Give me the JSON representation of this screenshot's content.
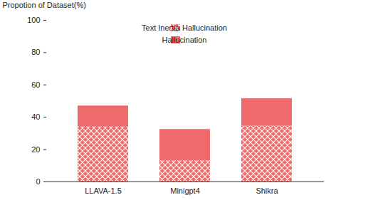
{
  "chart_data": {
    "type": "bar",
    "y_label": "Propotion of Dataset(%)",
    "categories": [
      "LLAVA-1.5",
      "Minigpt4",
      "Shikra"
    ],
    "series": [
      {
        "name": "Text Inertia Hallucination",
        "color": "#ef6a6a",
        "values": [
          34,
          13,
          34.5
        ]
      },
      {
        "name": "Hallucination",
        "color": "#ef6a6a",
        "values": [
          13,
          19.5,
          17
        ]
      }
    ],
    "ylim": [
      0,
      100
    ],
    "yticks": [
      0,
      20,
      40,
      60,
      80,
      100
    ],
    "stacked": true,
    "legend": "top",
    "grid": false
  }
}
